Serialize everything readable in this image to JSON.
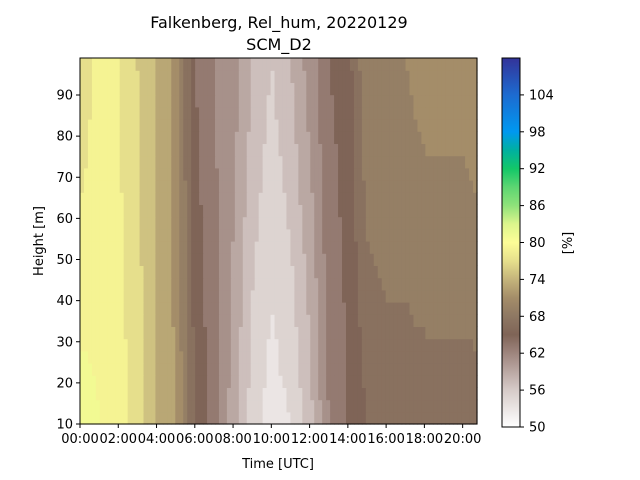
{
  "chart_data": {
    "type": "heatmap",
    "title": "Falkenberg, Rel_hum, 20220129",
    "subtitle": "SCM_D2",
    "xlabel": "Time [UTC]",
    "ylabel": "Height [m]",
    "colorbar_label": "[%]",
    "x_unit": "hours UTC",
    "xlim": [
      0,
      20.75
    ],
    "ylim": [
      10,
      99
    ],
    "x_ticks": [
      0,
      2,
      4,
      6,
      8,
      10,
      12,
      14,
      16,
      18,
      20
    ],
    "x_tick_labels": [
      "00:00",
      "02:00",
      "04:00",
      "06:00",
      "08:00",
      "10:00",
      "12:00",
      "14:00",
      "16:00",
      "18:00",
      "20:00"
    ],
    "y_ticks": [
      10,
      20,
      30,
      40,
      50,
      60,
      70,
      80,
      90
    ],
    "y_tick_labels": [
      "10",
      "20",
      "30",
      "40",
      "50",
      "60",
      "70",
      "80",
      "90"
    ],
    "colorbar_range": [
      50,
      110
    ],
    "colorbar_ticks": [
      50,
      56,
      62,
      68,
      74,
      80,
      86,
      92,
      98,
      104
    ],
    "colorbar_tick_labels": [
      "50",
      "56",
      "62",
      "68",
      "74",
      "80",
      "86",
      "92",
      "98",
      "104"
    ],
    "colormap": "terrain_r",
    "heights": [
      10,
      20,
      30,
      40,
      50,
      60,
      70,
      80,
      90,
      99
    ],
    "profile_times": [
      0,
      1,
      2,
      3,
      4,
      5,
      6,
      7,
      8,
      9,
      10,
      11,
      12,
      13,
      14,
      15,
      16,
      17,
      18,
      19,
      20,
      20.75
    ],
    "profile_values_10m": [
      81,
      80,
      79,
      77,
      74,
      72,
      66,
      63,
      59,
      55,
      53,
      54,
      57,
      62,
      64,
      66,
      67,
      67,
      67,
      67,
      67,
      67
    ],
    "profile_values_99m": [
      76,
      79,
      78,
      76,
      74,
      71,
      64,
      62,
      61,
      58,
      56,
      58,
      61,
      64,
      65,
      70,
      70,
      70,
      71,
      71,
      71,
      72
    ]
  }
}
